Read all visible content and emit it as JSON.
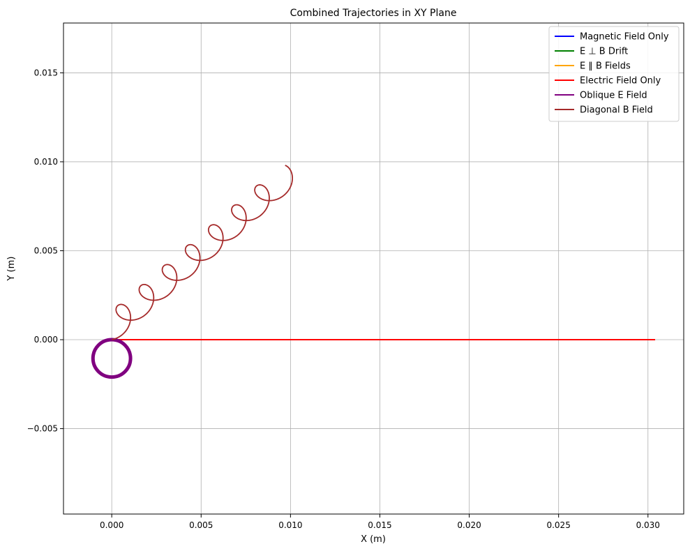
{
  "chart_data": {
    "type": "line",
    "title": "Combined Trajectories in XY Plane",
    "xlabel": "X (m)",
    "ylabel": "Y (m)",
    "xlim": [
      -0.0027,
      0.032
    ],
    "ylim": [
      -0.0098,
      0.0178
    ],
    "xticks": [
      0.0,
      0.005,
      0.01,
      0.015,
      0.02,
      0.025,
      0.03
    ],
    "xtick_labels": [
      "0.000",
      "0.005",
      "0.010",
      "0.015",
      "0.020",
      "0.025",
      "0.030"
    ],
    "yticks": [
      -0.005,
      0.0,
      0.005,
      0.01,
      0.015
    ],
    "ytick_labels": [
      "−0.005",
      "0.000",
      "0.005",
      "0.010",
      "0.015"
    ],
    "grid": true,
    "legend_position": "top-right",
    "series": [
      {
        "name": "Magnetic Field Only",
        "color": "#0000ff",
        "kind": "circle",
        "center": [
          0.0,
          -0.00105
        ],
        "radius": 0.00105
      },
      {
        "name": "E ⊥ B Drift",
        "color": "#008000",
        "kind": "line",
        "x": [
          0.0,
          0.0304
        ],
        "y": [
          0.0,
          0.0
        ]
      },
      {
        "name": "E ∥ B Fields",
        "color": "#ffa500",
        "kind": "line",
        "x": [
          0.0,
          0.0304
        ],
        "y": [
          0.0,
          0.0
        ]
      },
      {
        "name": "Electric Field Only",
        "color": "#ff0000",
        "kind": "line",
        "x": [
          0.0,
          0.0304
        ],
        "y": [
          0.0,
          0.0
        ]
      },
      {
        "name": "Oblique E Field",
        "color": "#800080",
        "kind": "circle",
        "center": [
          0.0,
          -0.00105
        ],
        "radius": 0.00105
      },
      {
        "name": "Diagonal B Field",
        "color": "#a52a2a",
        "kind": "helix",
        "start": [
          0.0,
          0.0
        ],
        "end": [
          0.0097,
          0.0084
        ],
        "loops": 7.5,
        "radius": 0.0007
      }
    ]
  }
}
